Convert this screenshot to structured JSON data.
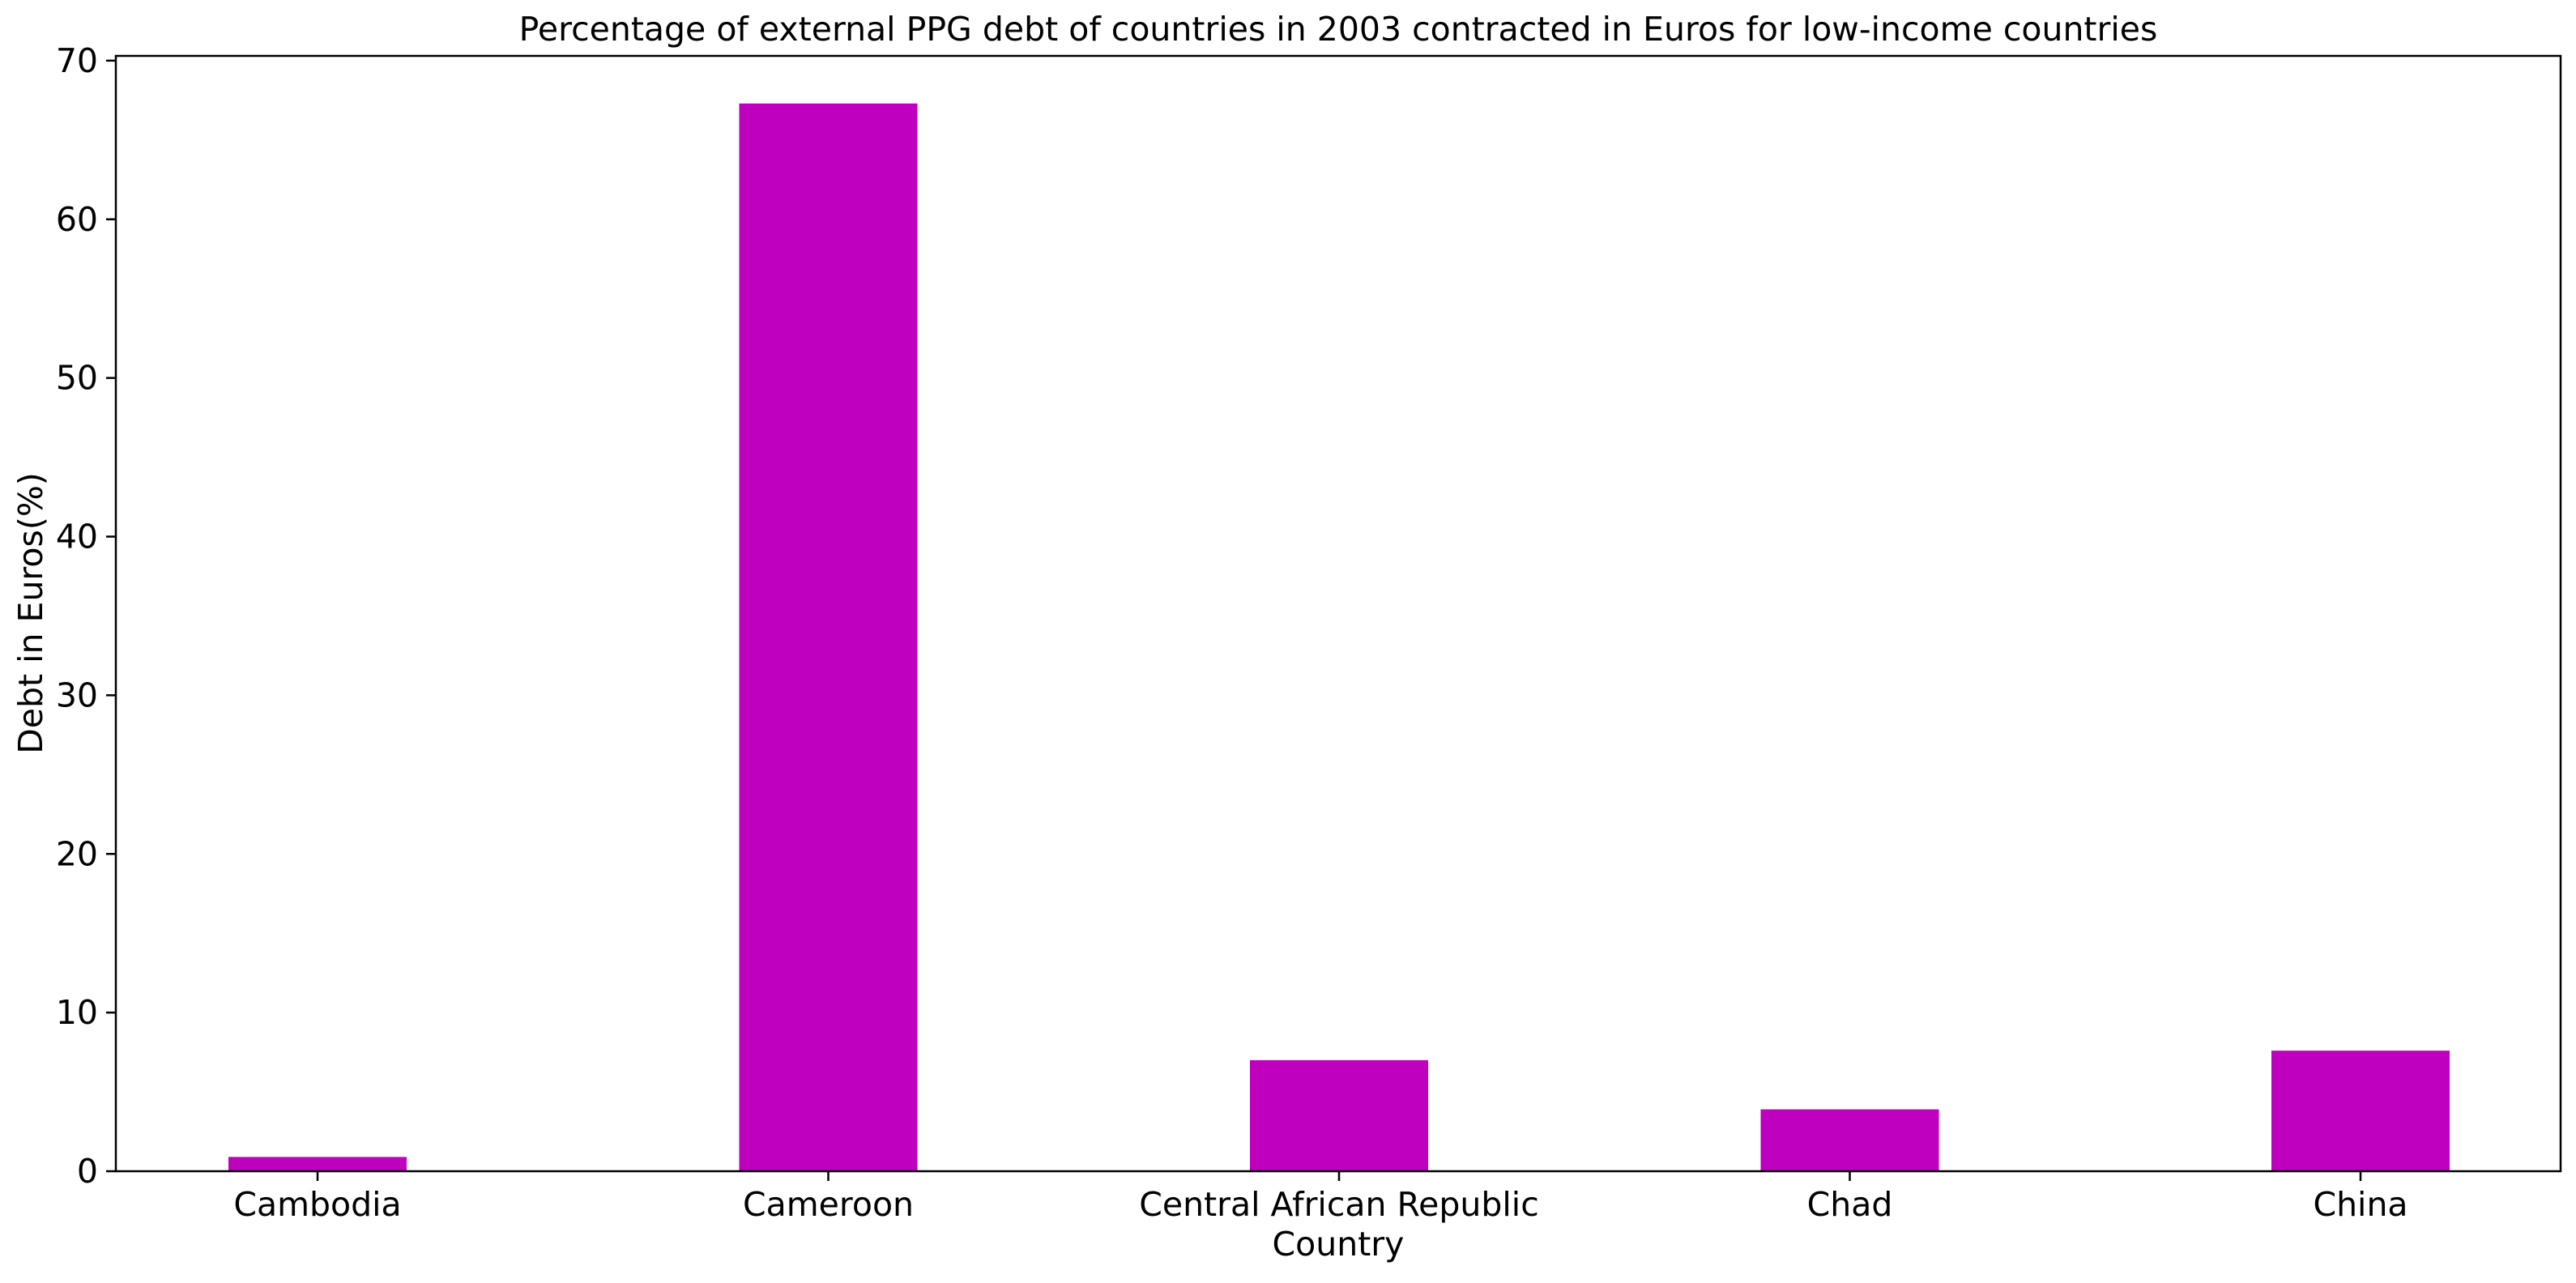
{
  "chart_data": {
    "type": "bar",
    "title": "Percentage of external PPG debt of countries in 2003 contracted in Euros for low-income countries",
    "xlabel": "Country",
    "ylabel": "Debt in Euros(%)",
    "categories": [
      "Cambodia",
      "Cameroon",
      "Central African Republic",
      "Chad",
      "China"
    ],
    "values": [
      0.9,
      67.3,
      7.0,
      3.9,
      7.6
    ],
    "ylim": [
      0,
      70.3
    ],
    "yticks": [
      0,
      10,
      20,
      30,
      40,
      50,
      60,
      70
    ],
    "grid": false,
    "legend": "none",
    "bar_color": "#bf00bf"
  }
}
